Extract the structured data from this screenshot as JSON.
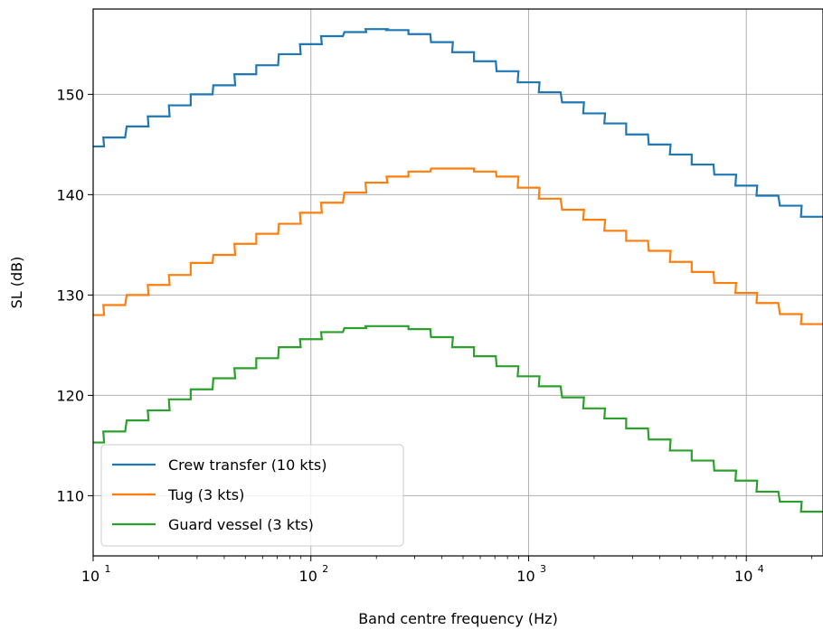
{
  "chart_data": {
    "type": "line",
    "step": true,
    "xlabel": "Band centre frequency (Hz)",
    "ylabel": "SL (dB)",
    "xscale": "log",
    "xlim": [
      10,
      22500
    ],
    "ylim": [
      104,
      158.5
    ],
    "grid": true,
    "legend_position": "lower-left",
    "x_ticks": [
      {
        "value": 10,
        "base": "10",
        "exp": "1"
      },
      {
        "value": 100,
        "base": "10",
        "exp": "2"
      },
      {
        "value": 1000,
        "base": "10",
        "exp": "3"
      },
      {
        "value": 10000,
        "base": "10",
        "exp": "4"
      }
    ],
    "y_ticks": [
      110,
      120,
      130,
      140,
      150
    ],
    "x": [
      10,
      12.5,
      16,
      20,
      25,
      31.5,
      40,
      50,
      63,
      80,
      100,
      125,
      160,
      200,
      250,
      315,
      400,
      500,
      630,
      800,
      1000,
      1250,
      1600,
      2000,
      2500,
      3150,
      4000,
      5000,
      6300,
      8000,
      10000,
      12500,
      16000,
      20000
    ],
    "series": [
      {
        "name": "Crew transfer (10 kts)",
        "color": "#1f77b4",
        "values": [
          144.8,
          145.7,
          146.8,
          147.8,
          148.9,
          150.0,
          150.9,
          152.0,
          152.9,
          154.0,
          155.0,
          155.8,
          156.2,
          156.5,
          156.4,
          156.0,
          155.2,
          154.2,
          153.3,
          152.3,
          151.2,
          150.2,
          149.2,
          148.1,
          147.1,
          146.0,
          145.0,
          144.0,
          143.0,
          142.0,
          140.9,
          139.9,
          138.9,
          137.8
        ]
      },
      {
        "name": "Tug (3 kts)",
        "color": "#ff7f0e",
        "values": [
          128.0,
          129.0,
          130.0,
          131.0,
          132.0,
          133.2,
          134.0,
          135.1,
          136.1,
          137.1,
          138.2,
          139.2,
          140.2,
          141.2,
          141.8,
          142.3,
          142.6,
          142.6,
          142.3,
          141.8,
          140.7,
          139.6,
          138.5,
          137.5,
          136.4,
          135.4,
          134.4,
          133.3,
          132.3,
          131.2,
          130.2,
          129.2,
          128.1,
          127.1
        ]
      },
      {
        "name": "Guard vessel (3 kts)",
        "color": "#2ca02c",
        "values": [
          115.3,
          116.4,
          117.5,
          118.5,
          119.6,
          120.6,
          121.7,
          122.7,
          123.7,
          124.8,
          125.6,
          126.3,
          126.7,
          126.9,
          126.9,
          126.6,
          125.8,
          124.8,
          123.9,
          122.9,
          121.9,
          120.9,
          119.8,
          118.7,
          117.7,
          116.7,
          115.6,
          114.5,
          113.5,
          112.5,
          111.5,
          110.4,
          109.4,
          108.4
        ]
      }
    ]
  }
}
